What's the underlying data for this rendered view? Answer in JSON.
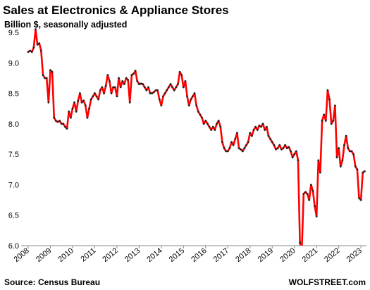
{
  "chart_data": {
    "type": "line",
    "title": "Sales at Electronics & Appliance Stores",
    "subtitle": "Billion $, seasonally adjusted",
    "source": "Source: Census Bureau",
    "credit": "WOLFSTREET.com",
    "series": [
      {
        "name": "Sales",
        "color": "#ff0000",
        "marker_color": "#222222",
        "x": [
          2008,
          2008.083,
          2008.167,
          2008.25,
          2008.333,
          2008.417,
          2008.5,
          2008.583,
          2008.667,
          2008.75,
          2008.833,
          2008.917,
          2009,
          2009.083,
          2009.167,
          2009.25,
          2009.333,
          2009.417,
          2009.5,
          2009.583,
          2009.667,
          2009.75,
          2009.833,
          2009.917,
          2010,
          2010.083,
          2010.167,
          2010.25,
          2010.333,
          2010.417,
          2010.5,
          2010.583,
          2010.667,
          2010.75,
          2010.833,
          2010.917,
          2011,
          2011.083,
          2011.167,
          2011.25,
          2011.333,
          2011.417,
          2011.5,
          2011.583,
          2011.667,
          2011.75,
          2011.833,
          2011.917,
          2012,
          2012.083,
          2012.167,
          2012.25,
          2012.333,
          2012.417,
          2012.5,
          2012.583,
          2012.667,
          2012.75,
          2012.833,
          2012.917,
          2013,
          2013.083,
          2013.167,
          2013.25,
          2013.333,
          2013.417,
          2013.5,
          2013.583,
          2013.667,
          2013.75,
          2013.833,
          2013.917,
          2014,
          2014.083,
          2014.167,
          2014.25,
          2014.333,
          2014.417,
          2014.5,
          2014.583,
          2014.667,
          2014.75,
          2014.833,
          2014.917,
          2015,
          2015.083,
          2015.167,
          2015.25,
          2015.333,
          2015.417,
          2015.5,
          2015.583,
          2015.667,
          2015.75,
          2015.833,
          2015.917,
          2016,
          2016.083,
          2016.167,
          2016.25,
          2016.333,
          2016.417,
          2016.5,
          2016.583,
          2016.667,
          2016.75,
          2016.833,
          2016.917,
          2017,
          2017.083,
          2017.167,
          2017.25,
          2017.333,
          2017.417,
          2017.5,
          2017.583,
          2017.667,
          2017.75,
          2017.833,
          2017.917,
          2018,
          2018.083,
          2018.167,
          2018.25,
          2018.333,
          2018.417,
          2018.5,
          2018.583,
          2018.667,
          2018.75,
          2018.833,
          2018.917,
          2019,
          2019.083,
          2019.167,
          2019.25,
          2019.333,
          2019.417,
          2019.5,
          2019.583,
          2019.667,
          2019.75,
          2019.833,
          2019.917,
          2020,
          2020.083,
          2020.167,
          2020.25,
          2020.333,
          2020.417,
          2020.5,
          2020.583,
          2020.667,
          2020.75,
          2020.833,
          2020.917,
          2021,
          2021.083,
          2021.167,
          2021.25,
          2021.333,
          2021.417,
          2021.5,
          2021.583,
          2021.667,
          2021.75,
          2021.833,
          2021.917,
          2022,
          2022.083,
          2022.167,
          2022.25,
          2022.333,
          2022.417,
          2022.5,
          2022.583,
          2022.667,
          2022.75,
          2022.833,
          2022.917,
          2023,
          2023.083,
          2023.167
        ],
        "values": [
          9.18,
          9.2,
          9.18,
          9.25,
          9.55,
          9.3,
          9.32,
          9.2,
          8.8,
          8.75,
          8.75,
          8.35,
          8.88,
          8.85,
          8.1,
          8.05,
          8.03,
          8.05,
          8.0,
          8.0,
          7.95,
          7.92,
          8.2,
          8.1,
          8.25,
          8.35,
          8.2,
          8.38,
          8.5,
          8.35,
          8.38,
          8.3,
          8.1,
          8.25,
          8.4,
          8.45,
          8.5,
          8.45,
          8.4,
          8.55,
          8.6,
          8.5,
          8.62,
          8.8,
          8.7,
          8.5,
          8.6,
          8.6,
          8.45,
          8.75,
          8.6,
          8.7,
          8.65,
          8.75,
          8.72,
          8.35,
          8.8,
          8.82,
          8.87,
          8.7,
          8.65,
          8.66,
          8.65,
          8.6,
          8.55,
          8.6,
          8.5,
          8.5,
          8.52,
          8.55,
          8.55,
          8.4,
          8.3,
          8.45,
          8.5,
          8.55,
          8.6,
          8.65,
          8.6,
          8.55,
          8.6,
          8.65,
          8.85,
          8.8,
          8.6,
          8.7,
          8.45,
          8.3,
          8.4,
          8.45,
          8.5,
          8.3,
          8.2,
          8.15,
          8.1,
          8.0,
          8.05,
          8.0,
          7.95,
          7.9,
          7.95,
          7.9,
          8.0,
          8.05,
          7.95,
          7.7,
          7.6,
          7.55,
          7.55,
          7.6,
          7.7,
          7.65,
          7.75,
          7.85,
          7.6,
          7.58,
          7.55,
          7.6,
          7.65,
          7.7,
          7.85,
          7.8,
          7.9,
          7.95,
          7.9,
          7.97,
          7.95,
          8.0,
          7.9,
          7.95,
          7.8,
          7.75,
          7.7,
          7.65,
          7.58,
          7.6,
          7.65,
          7.58,
          7.6,
          7.65,
          7.6,
          7.62,
          7.55,
          7.45,
          7.5,
          7.55,
          7.4,
          6.05,
          5.9,
          6.85,
          6.88,
          6.85,
          6.75,
          7.0,
          6.9,
          6.65,
          6.48,
          7.4,
          7.2,
          8.05,
          8.15,
          8.05,
          8.55,
          8.4,
          8.0,
          8.05,
          8.3,
          7.45,
          7.6,
          7.3,
          7.4,
          7.65,
          7.8,
          7.6,
          7.55,
          7.55,
          7.5,
          7.3,
          7.25,
          6.78,
          6.75,
          7.2,
          7.22
        ]
      }
    ],
    "xlim": [
      2008,
      2023.25
    ],
    "xticks": [
      2008,
      2009,
      2010,
      2011,
      2012,
      2013,
      2014,
      2015,
      2016,
      2017,
      2018,
      2019,
      2020,
      2021,
      2022,
      2023
    ],
    "ylim": [
      6,
      9.5
    ],
    "yticks": [
      {
        "value": 6,
        "label": "6.0"
      },
      6.5,
      {
        "value": 7,
        "label": "7.0"
      },
      7.5,
      {
        "value": 8,
        "label": "8.0"
      },
      8.5,
      {
        "value": 9,
        "label": "9.0"
      },
      9.5
    ],
    "grid": false
  }
}
